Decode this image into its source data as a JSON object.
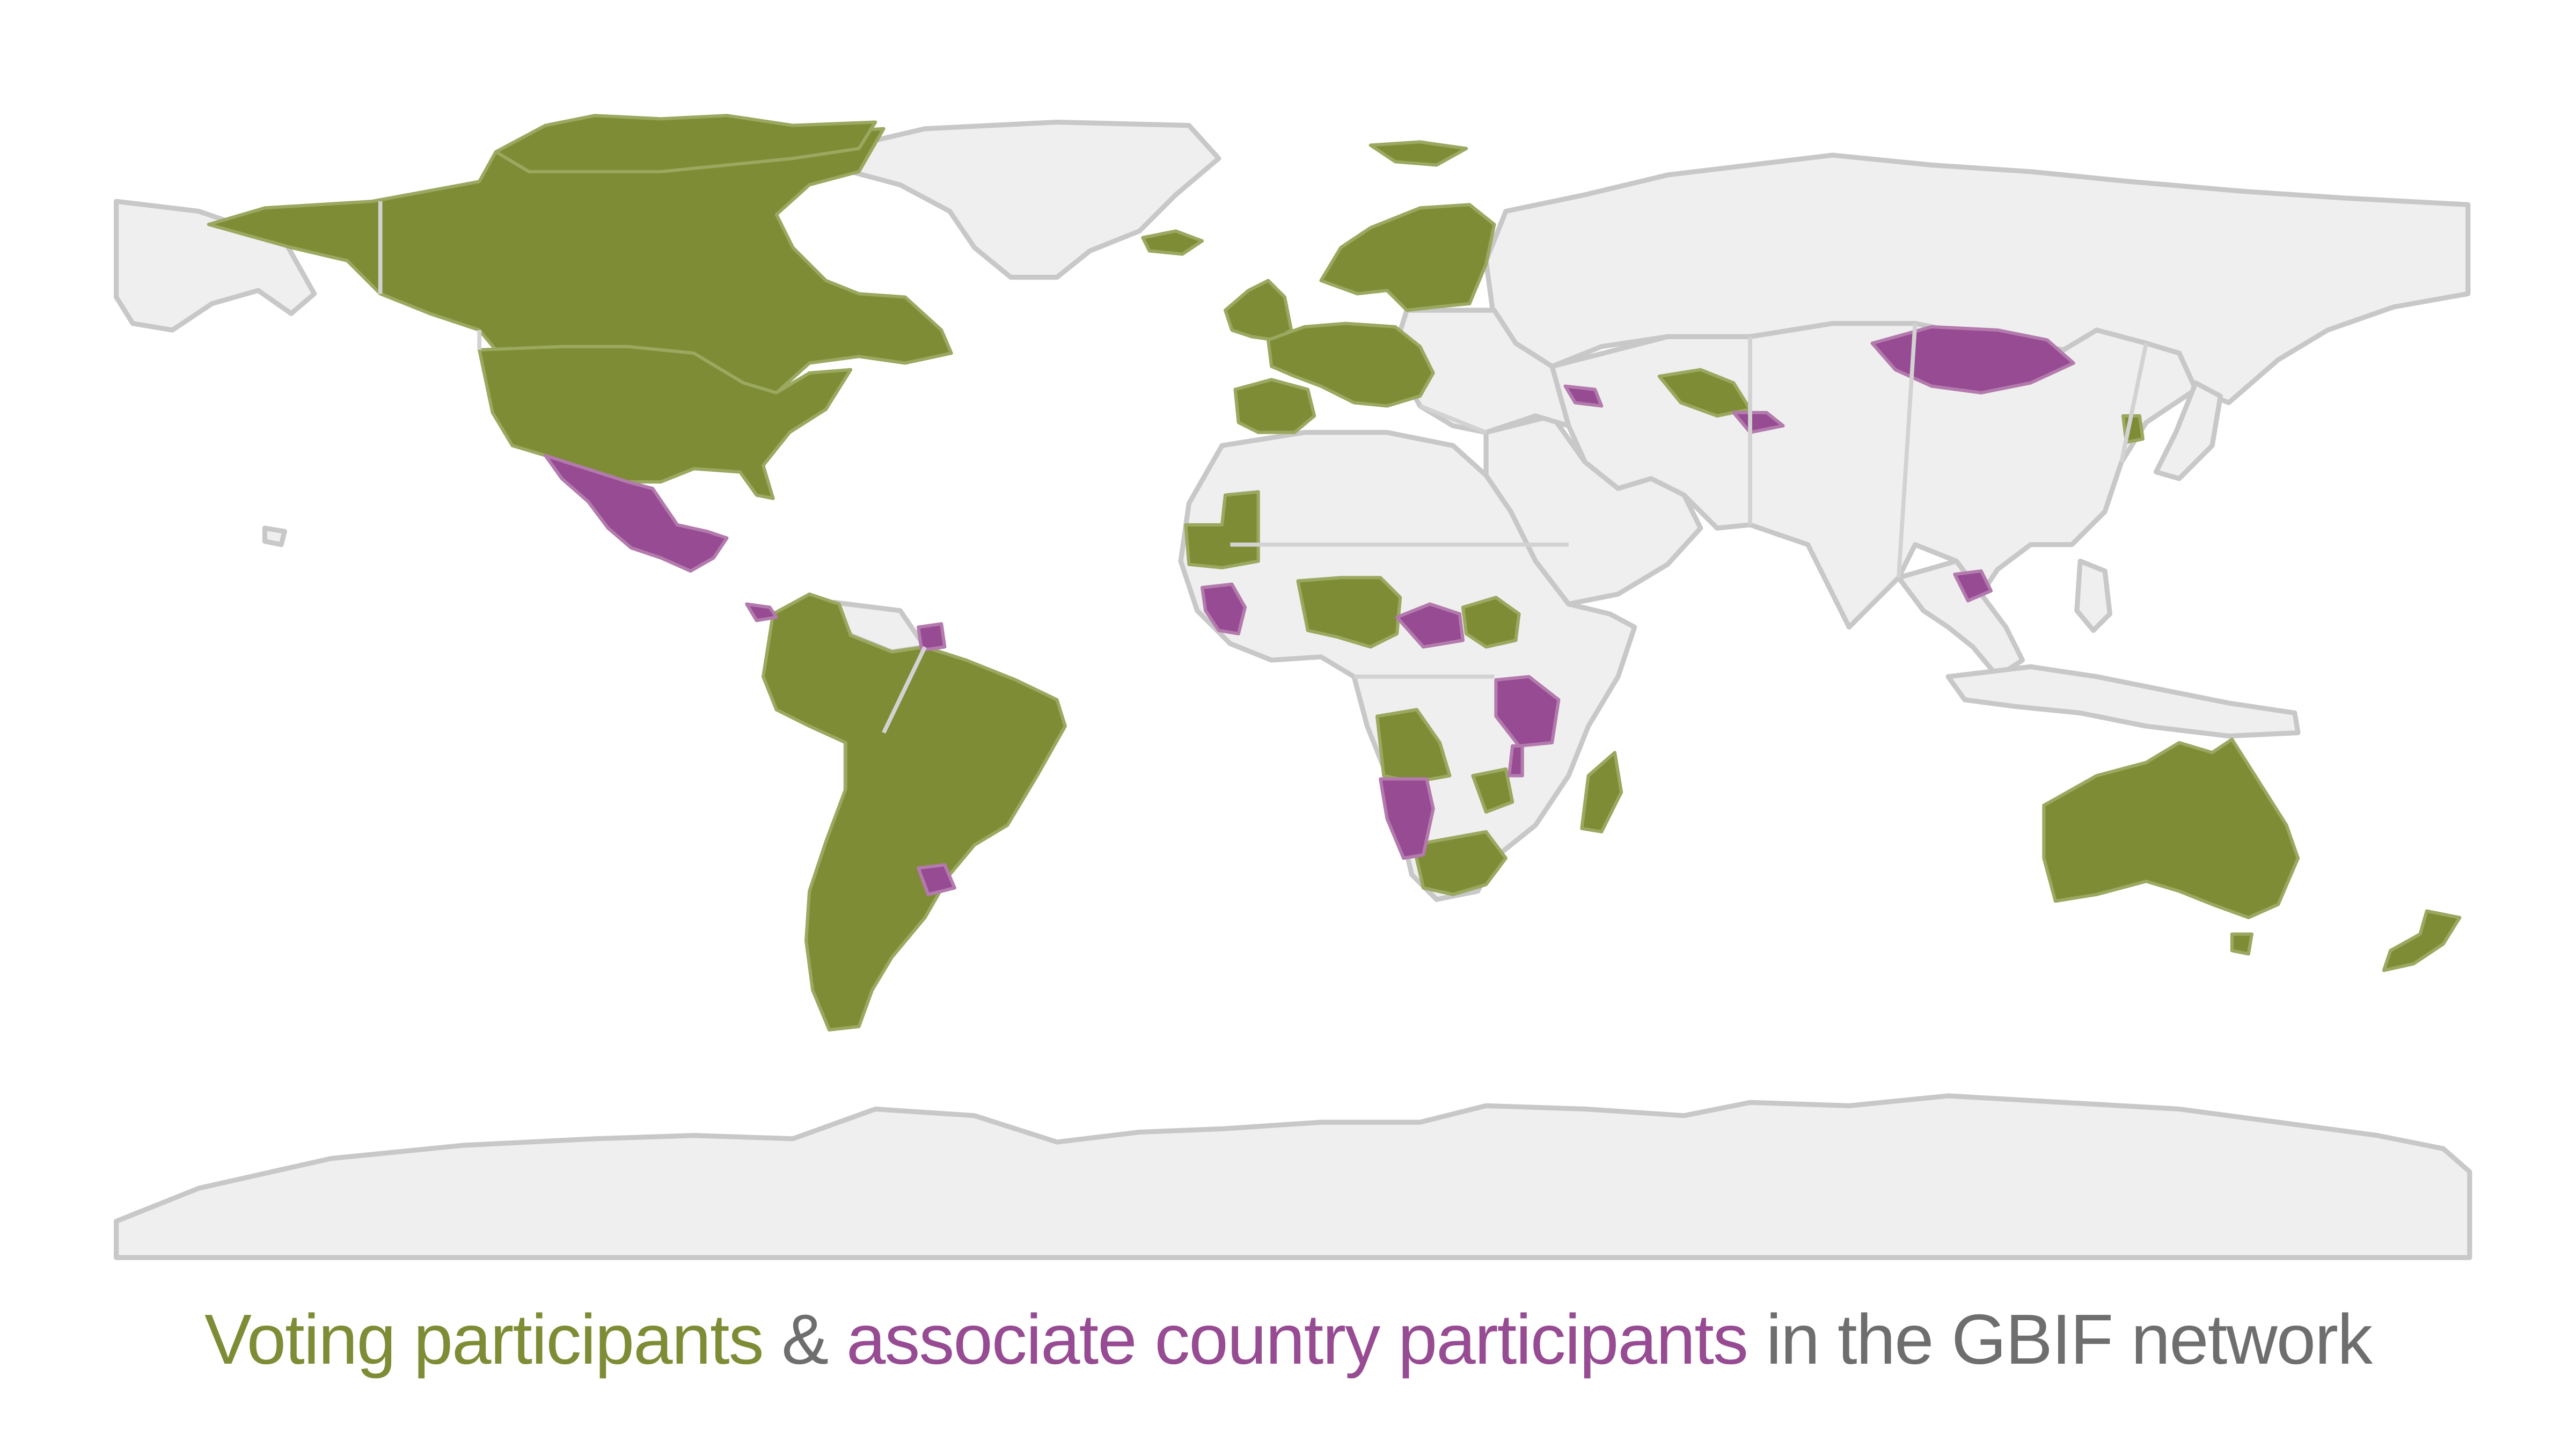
{
  "map": {
    "colors": {
      "voting": "#7e8c35",
      "associate": "#964b92",
      "non_participant": "#efefef",
      "caption_neutral": "#6e6e6e"
    },
    "legend": {
      "voting_label": "Voting participants",
      "separator": " & ",
      "associate_label": "associate country participants",
      "suffix": " in the GBIF network"
    }
  }
}
